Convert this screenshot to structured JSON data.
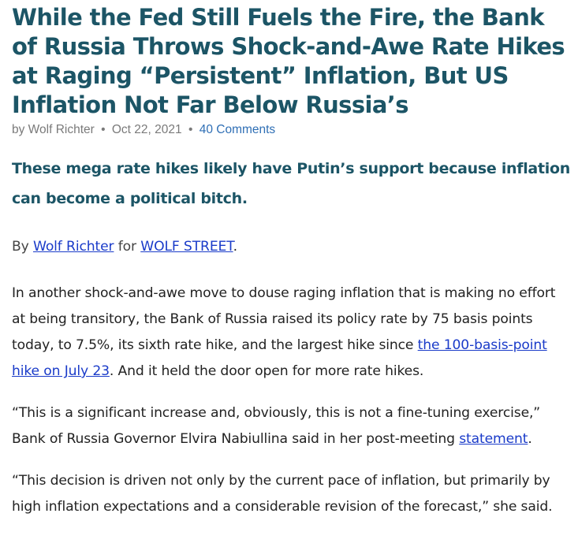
{
  "article": {
    "title": "While the Fed Still Fuels the Fire, the Bank of Russia Throws Shock-and-Awe Rate Hikes at Raging “Persistent” Inflation, But US Inflation Not Far Below Russia’s",
    "meta": {
      "author": "by Wolf Richter",
      "separator": "•",
      "date": "Oct 22, 2021",
      "comments": "40 Comments"
    },
    "subtitle": "These mega rate hikes likely have Putin’s support because inflation can become a political bitch.",
    "byline": {
      "by": "By ",
      "author_link": "Wolf Richter",
      "for": " for ",
      "site_link": "WOLF STREET",
      "end": "."
    },
    "paragraphs": {
      "p1_part1": "In another shock-and-awe move to douse raging inflation that is making no effort at being transitory, the Bank of Russia raised its policy rate by 75 basis points today, to 7.5%, its sixth rate hike, and the largest hike since ",
      "p1_link": "the 100-basis-point hike on July 23",
      "p1_part2": ". And it held the door open for more rate hikes.",
      "p2_part1": "“This is a significant increase and, obviously, this is not a fine-tuning exercise,” Bank of Russia Governor Elvira Nabiullina said in her post-meeting ",
      "p2_link": "statement",
      "p2_part2": ".",
      "p3": "“This decision is driven not only by the current pace of inflation, but primarily by high inflation expectations and a considerable revision of the forecast,” she said."
    }
  }
}
